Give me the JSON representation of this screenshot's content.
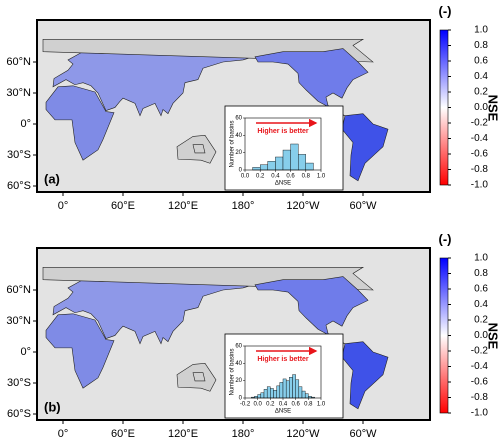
{
  "panels": [
    {
      "label": "(a)",
      "map": {
        "xticks": [
          {
            "value": 0,
            "label": "0°"
          },
          {
            "value": 60,
            "label": "60°E"
          },
          {
            "value": 120,
            "label": "120°E"
          },
          {
            "value": 180,
            "label": "180°"
          },
          {
            "value": -120,
            "label": "120°W"
          },
          {
            "value": -60,
            "label": "60°W"
          }
        ],
        "yticks": [
          {
            "value": 60,
            "label": "60°N"
          },
          {
            "value": 30,
            "label": "30°N"
          },
          {
            "value": 0,
            "label": "0°"
          },
          {
            "value": -30,
            "label": "30°S"
          },
          {
            "value": -60,
            "label": "60°S"
          }
        ]
      },
      "colorbar": {
        "title": "(-)",
        "label": "NSE",
        "lim": [
          -1,
          1
        ],
        "ticks": [
          {
            "value": 1,
            "label": "1.0"
          },
          0.8,
          0.6,
          0.4,
          0.2,
          {
            "value": 0,
            "label": "0.0"
          },
          -0.2,
          -0.4,
          -0.6,
          -0.8,
          {
            "value": -1,
            "label": "-1.0"
          }
        ]
      },
      "inset": {
        "type": "histogram",
        "annotation": "Higher is better",
        "y_label": "Number of basins",
        "x_label": "ΔNSE",
        "color": "#87ceeb",
        "bins": [
          0.1,
          0.2,
          0.3,
          0.4,
          0.5,
          0.6,
          0.7,
          0.8,
          0.9
        ],
        "counts": [
          3,
          6,
          10,
          15,
          23,
          30,
          18,
          8
        ],
        "xlim": [
          0,
          1
        ],
        "xticks": [
          {
            "value": 0,
            "label": "0.0"
          },
          0.2,
          0.4,
          0.6,
          0.8,
          {
            "value": 1,
            "label": "1.0"
          }
        ],
        "ylim": [
          0,
          60
        ],
        "yticks": [
          0,
          20,
          40,
          60
        ]
      }
    },
    {
      "label": "(b)",
      "map": {
        "xticks": [
          {
            "value": 0,
            "label": "0°"
          },
          {
            "value": 60,
            "label": "60°E"
          },
          {
            "value": 120,
            "label": "120°E"
          },
          {
            "value": 180,
            "label": "180°"
          },
          {
            "value": -120,
            "label": "120°W"
          },
          {
            "value": -60,
            "label": "60°W"
          }
        ],
        "yticks": [
          {
            "value": 60,
            "label": "60°N"
          },
          {
            "value": 30,
            "label": "30°N"
          },
          {
            "value": 0,
            "label": "0°"
          },
          {
            "value": -30,
            "label": "30°S"
          },
          {
            "value": -60,
            "label": "60°S"
          }
        ]
      },
      "colorbar": {
        "title": "(-)",
        "label": "NSE",
        "lim": [
          -1,
          1
        ],
        "ticks": [
          {
            "value": 1,
            "label": "1.0"
          },
          0.8,
          0.6,
          0.4,
          0.2,
          {
            "value": 0,
            "label": "0.0"
          },
          -0.2,
          -0.4,
          -0.6,
          -0.8,
          {
            "value": -1,
            "label": "-1.0"
          }
        ]
      },
      "inset": {
        "type": "histogram",
        "annotation": "Higher is better",
        "y_label": "Number of basins",
        "x_label": "ΔNSE",
        "color": "#87ceeb",
        "bins": [
          -0.1,
          -0.05,
          0,
          0.05,
          0.1,
          0.15,
          0.2,
          0.25,
          0.3,
          0.35,
          0.4,
          0.45,
          0.5,
          0.55,
          0.6,
          0.65,
          0.7,
          0.75,
          0.8,
          0.85,
          0.9
        ],
        "counts": [
          1,
          2,
          4,
          6,
          10,
          13,
          11,
          9,
          14,
          18,
          22,
          20,
          24,
          27,
          21,
          13,
          8,
          5,
          2,
          1
        ],
        "xlim": [
          -0.2,
          1
        ],
        "xticks": [
          -0.2,
          {
            "value": 0,
            "label": "0.0"
          },
          0.2,
          0.4,
          0.6,
          0.8,
          {
            "value": 1,
            "label": "1.0"
          }
        ],
        "ylim": [
          0,
          60
        ],
        "yticks": [
          0,
          20,
          40,
          60
        ]
      }
    }
  ]
}
